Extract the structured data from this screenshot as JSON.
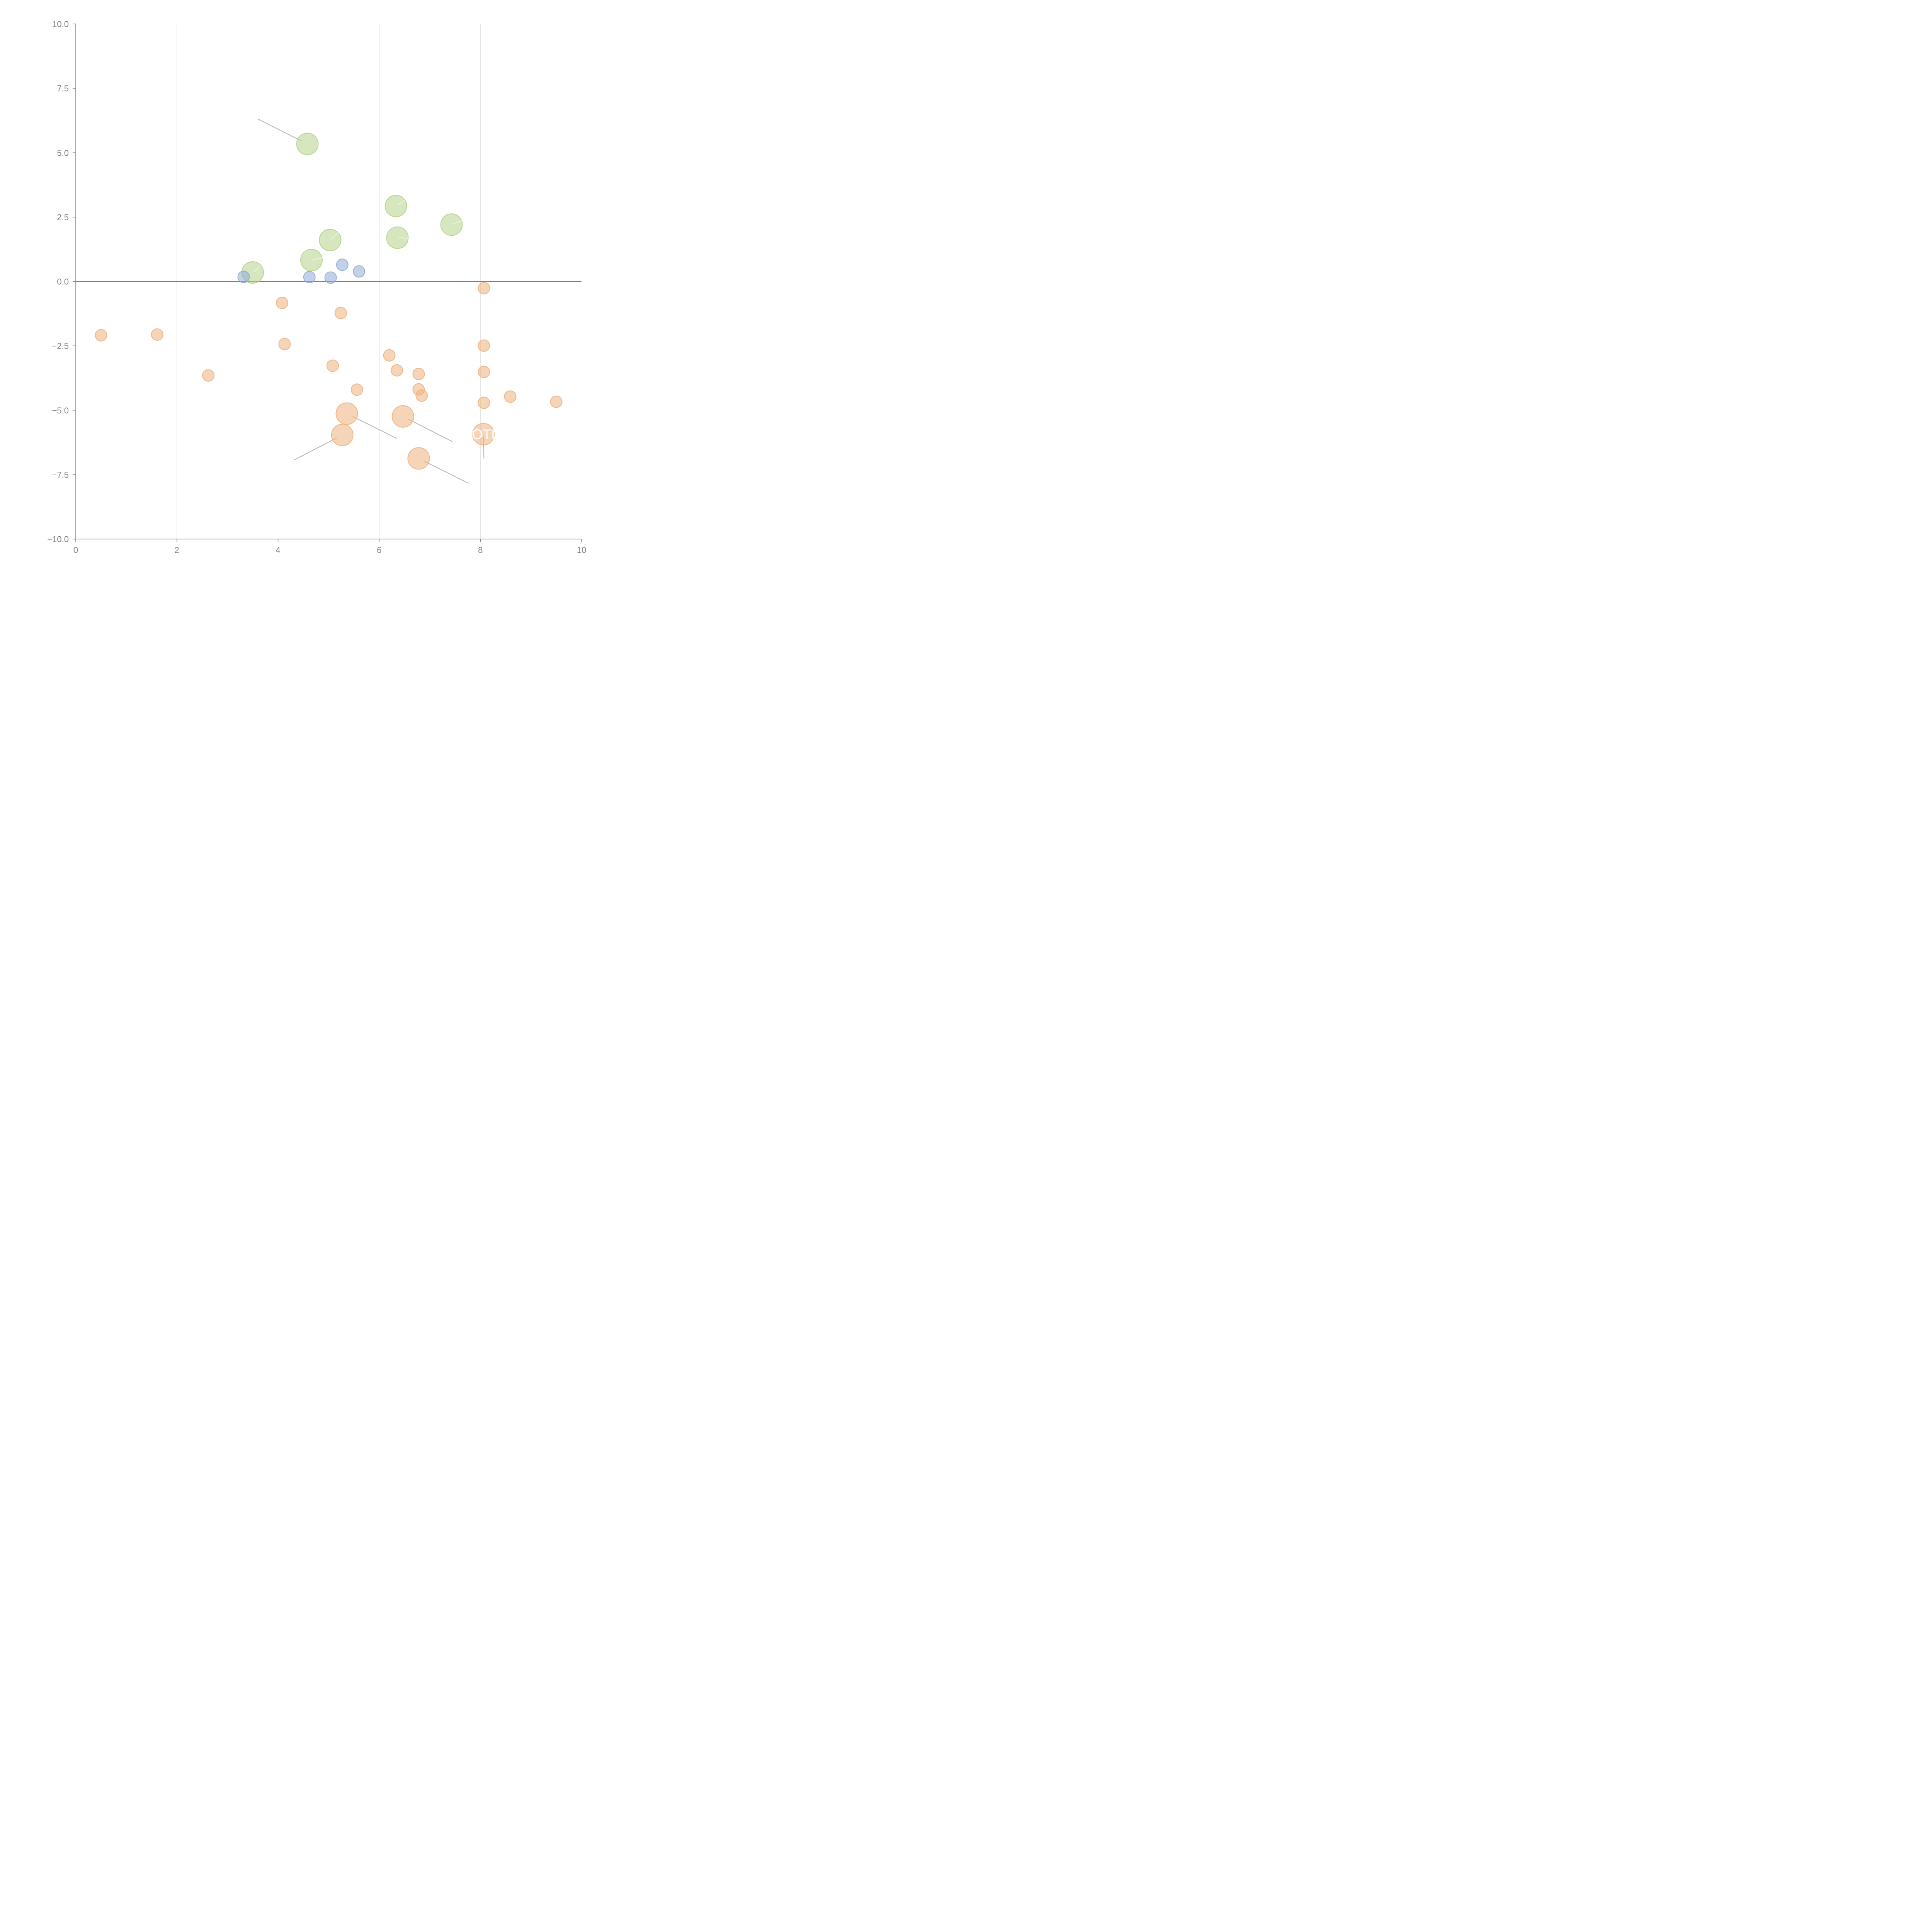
{
  "chart_data": {
    "type": "scatter",
    "title": "",
    "xlabel": "",
    "ylabel": "",
    "xlim": [
      0,
      10
    ],
    "ylim": [
      -10,
      10
    ],
    "x_ticks": [
      0,
      2,
      4,
      6,
      8,
      10
    ],
    "x_tick_labels": [
      "0",
      "2",
      "4",
      "6",
      "8",
      "10"
    ],
    "y_ticks": [
      10,
      7.5,
      5,
      2.5,
      0,
      -2.5,
      -5,
      -7.5,
      -10
    ],
    "y_tick_labels": [
      "10.0",
      "7.5",
      "5.0",
      "2.5",
      "0.0",
      "−2.5",
      "−5.0",
      "−7.5",
      "−10.0"
    ],
    "grid": "vertical",
    "reference_line_y": 0,
    "legend": "none",
    "series": [
      {
        "name": "green",
        "color": "#b5d18a",
        "size": "large",
        "points": [
          {
            "x": 4.58,
            "y": 5.34,
            "label": "",
            "label_anchor": [
              3.61,
              6.3
            ],
            "leader": "gray"
          },
          {
            "x": 6.33,
            "y": 2.93,
            "label": "",
            "label_anchor": [
              6.52,
              3.18
            ],
            "leader": "light"
          },
          {
            "x": 7.43,
            "y": 2.21,
            "label": "",
            "label_anchor": [
              7.64,
              2.37
            ],
            "leader": "light"
          },
          {
            "x": 5.03,
            "y": 1.61,
            "label": "",
            "label_anchor": [
              5.21,
              1.94
            ],
            "leader": "light"
          },
          {
            "x": 6.36,
            "y": 1.7,
            "label": "",
            "label_anchor": [
              6.59,
              1.68
            ],
            "leader": "light"
          },
          {
            "x": 4.66,
            "y": 0.83,
            "label": "",
            "label_anchor": [
              4.88,
              0.93
            ],
            "leader": "light"
          },
          {
            "x": 3.5,
            "y": 0.35,
            "label": "",
            "label_anchor": [
              3.66,
              0.62
            ],
            "leader": "light"
          }
        ]
      },
      {
        "name": "blue",
        "color": "#8faad6",
        "size": "small",
        "points": [
          {
            "x": 3.32,
            "y": 0.18
          },
          {
            "x": 4.62,
            "y": 0.17
          },
          {
            "x": 5.04,
            "y": 0.15
          },
          {
            "x": 5.27,
            "y": 0.65
          },
          {
            "x": 5.6,
            "y": 0.39
          }
        ]
      },
      {
        "name": "orange",
        "color": "#eeb07e",
        "size": "small",
        "points": [
          {
            "x": 8.07,
            "y": -0.26
          },
          {
            "x": 4.08,
            "y": -0.83
          },
          {
            "x": 5.24,
            "y": -1.22
          },
          {
            "x": 0.5,
            "y": -2.09
          },
          {
            "x": 1.61,
            "y": -2.06
          },
          {
            "x": 4.13,
            "y": -2.43
          },
          {
            "x": 8.07,
            "y": -2.49
          },
          {
            "x": 6.2,
            "y": -2.87
          },
          {
            "x": 5.08,
            "y": -3.27
          },
          {
            "x": 6.35,
            "y": -3.45
          },
          {
            "x": 6.78,
            "y": -3.59
          },
          {
            "x": 8.07,
            "y": -3.51
          },
          {
            "x": 2.62,
            "y": -3.65
          },
          {
            "x": 5.56,
            "y": -4.2
          },
          {
            "x": 6.78,
            "y": -4.19
          },
          {
            "x": 6.84,
            "y": -4.43
          },
          {
            "x": 8.59,
            "y": -4.47
          },
          {
            "x": 8.07,
            "y": -4.71
          },
          {
            "x": 9.5,
            "y": -4.67
          }
        ]
      },
      {
        "name": "orange-highlighted",
        "color": "#eeb07e",
        "size": "large",
        "points": [
          {
            "x": 5.36,
            "y": -5.13,
            "label": "",
            "label_anchor": [
              6.34,
              -6.09
            ],
            "leader": "gray"
          },
          {
            "x": 6.47,
            "y": -5.24,
            "label": "",
            "label_anchor": [
              7.44,
              -6.21
            ],
            "leader": "gray"
          },
          {
            "x": 5.27,
            "y": -5.96,
            "label": "",
            "label_anchor": [
              4.32,
              -6.93
            ],
            "leader": "gray"
          },
          {
            "x": 8.06,
            "y": -5.93,
            "label": "OTI",
            "label_anchor": [
              8.07,
              -6.86
            ],
            "leader": "gray"
          },
          {
            "x": 6.78,
            "y": -6.87,
            "label": "",
            "label_anchor": [
              7.76,
              -7.83
            ],
            "leader": "gray"
          }
        ]
      }
    ]
  }
}
